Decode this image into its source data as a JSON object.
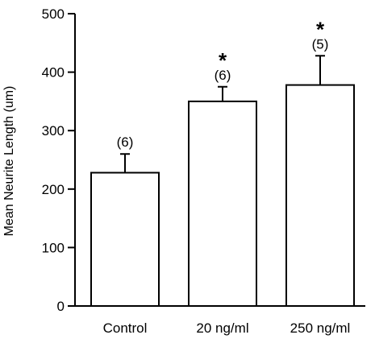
{
  "chart_data": {
    "type": "bar",
    "title": "",
    "xlabel": "",
    "ylabel": "Mean Neurite Length (um)",
    "ylim": [
      0,
      500
    ],
    "yticks": [
      0,
      100,
      200,
      300,
      400,
      500
    ],
    "grid": false,
    "categories": [
      "Control",
      "20 ng/ml",
      "250 ng/ml"
    ],
    "values": [
      228,
      350,
      378
    ],
    "error_plus": [
      32,
      25,
      50
    ],
    "n_labels": [
      "(6)",
      "(6)",
      "(5)"
    ],
    "significance": [
      "",
      "*",
      "*"
    ],
    "bar_fill": "#ffffff",
    "bar_stroke": "#000000"
  }
}
